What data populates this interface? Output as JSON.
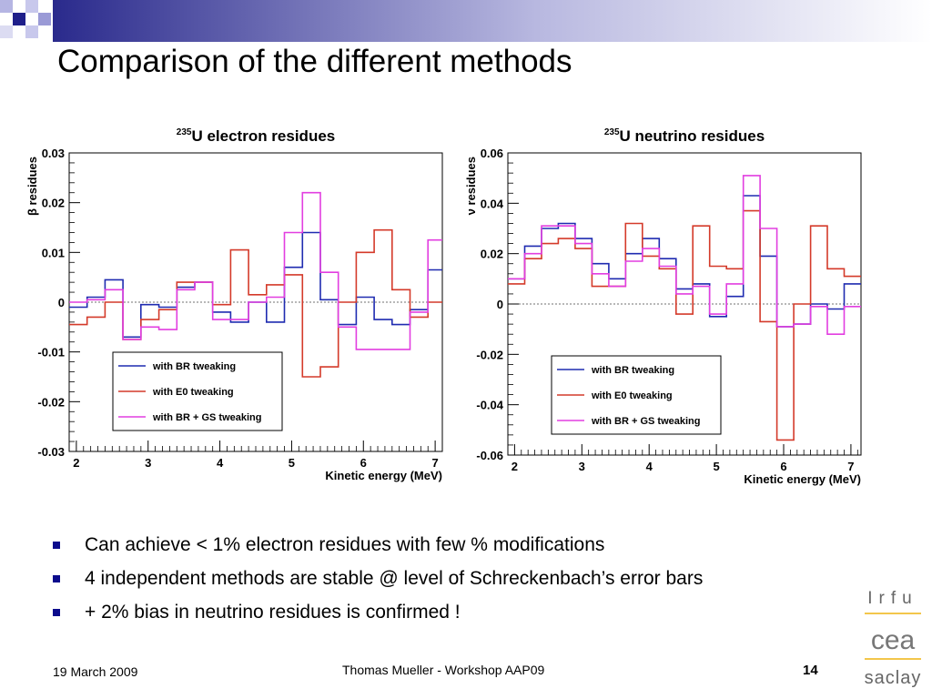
{
  "slide": {
    "title": "Comparison of the different methods",
    "bullets": [
      "Can achieve < 1% electron residues with few % modifications",
      "4 independent methods are stable @ level of Schreckenbach’s error bars",
      "+ 2% bias in neutrino residues is confirmed !"
    ],
    "footer": {
      "date": "19 March 2009",
      "author": "Thomas Mueller - Workshop AAP09",
      "page": "14"
    },
    "logos": {
      "irfu": "Irfu",
      "cea": "cea",
      "saclay": "saclay"
    }
  },
  "colors": {
    "BR": "#1f2bb0",
    "E0": "#d43a2a",
    "BR_GS": "#e23ee0",
    "bullet": "#0b0b8c",
    "logo_line": "#f3c64b"
  },
  "chart_data": [
    {
      "type": "line",
      "title_sup": "235",
      "title": "U electron residues",
      "ylabel": "β residues",
      "xlabel": "Kinetic energy (MeV)",
      "xlim": [
        1.9,
        7.1
      ],
      "ylim": [
        -0.03,
        0.03
      ],
      "xticks": [
        "2",
        "3",
        "4",
        "5",
        "6",
        "7"
      ],
      "yticks": [
        "0.03",
        "0.02",
        "0.01",
        "0",
        "-0.01",
        "-0.02",
        "-0.03"
      ],
      "ytick_values": [
        0.03,
        0.02,
        0.01,
        0,
        -0.01,
        -0.02,
        -0.03
      ],
      "legend_position": "bottom-left",
      "bin_edges": [
        1.9,
        2.15,
        2.4,
        2.65,
        2.9,
        3.15,
        3.4,
        3.65,
        3.9,
        4.15,
        4.4,
        4.65,
        4.9,
        5.15,
        5.4,
        5.65,
        5.9,
        6.15,
        6.4,
        6.65,
        6.9,
        7.15
      ],
      "series": [
        {
          "key": "BR",
          "name": "with BR tweaking",
          "values": [
            -0.001,
            0.001,
            0.0045,
            -0.007,
            -0.0005,
            -0.001,
            0.003,
            0.004,
            -0.002,
            -0.004,
            0.0,
            -0.004,
            0.007,
            0.014,
            0.0005,
            -0.0045,
            0.001,
            -0.0035,
            -0.0045,
            -0.0015,
            0.0065
          ]
        },
        {
          "key": "E0",
          "name": "with E0 tweaking",
          "values": [
            -0.0045,
            -0.003,
            0.0,
            -0.0075,
            -0.0035,
            -0.0015,
            0.004,
            0.004,
            -0.0005,
            0.0105,
            0.0015,
            0.0035,
            0.0055,
            -0.015,
            -0.013,
            0.0,
            0.01,
            0.0145,
            0.0025,
            -0.003,
            0.0
          ]
        },
        {
          "key": "BR_GS",
          "name": "with BR + GS tweaking",
          "values": [
            0.0,
            0.0005,
            0.0025,
            -0.0075,
            -0.005,
            -0.0055,
            0.0025,
            0.004,
            -0.0035,
            -0.0035,
            0.0,
            0.001,
            0.014,
            0.022,
            0.006,
            -0.005,
            -0.0095,
            -0.0095,
            -0.0095,
            -0.002,
            0.0125
          ]
        }
      ]
    },
    {
      "type": "line",
      "title_sup": "235",
      "title": "U neutrino residues",
      "ylabel": "ν residues",
      "xlabel": "Kinetic energy (MeV)",
      "xlim": [
        1.9,
        7.15
      ],
      "ylim": [
        -0.06,
        0.06
      ],
      "xticks": [
        "2",
        "3",
        "4",
        "5",
        "6",
        "7"
      ],
      "yticks": [
        "0.06",
        "0.04",
        "0.02",
        "0",
        "-0.02",
        "-0.04",
        "-0.06"
      ],
      "ytick_values": [
        0.06,
        0.04,
        0.02,
        0,
        -0.02,
        -0.04,
        -0.06
      ],
      "legend_position": "bottom-left",
      "bin_edges": [
        1.9,
        2.15,
        2.4,
        2.65,
        2.9,
        3.15,
        3.4,
        3.65,
        3.9,
        4.15,
        4.4,
        4.65,
        4.9,
        5.15,
        5.4,
        5.65,
        5.9,
        6.15,
        6.4,
        6.65,
        6.9,
        7.15
      ],
      "series": [
        {
          "key": "BR",
          "name": "with BR tweaking",
          "values": [
            0.01,
            0.023,
            0.03,
            0.032,
            0.026,
            0.016,
            0.01,
            0.02,
            0.026,
            0.018,
            0.006,
            0.008,
            -0.005,
            0.003,
            0.043,
            0.019,
            -0.009,
            -0.008,
            0.0,
            -0.002,
            0.008
          ]
        },
        {
          "key": "E0",
          "name": "with E0 tweaking",
          "values": [
            0.008,
            0.018,
            0.024,
            0.026,
            0.022,
            0.007,
            0.007,
            0.032,
            0.019,
            0.014,
            -0.004,
            0.031,
            0.015,
            0.014,
            0.037,
            -0.007,
            -0.054,
            0.0,
            0.031,
            0.014,
            0.011
          ]
        },
        {
          "key": "BR_GS",
          "name": "with BR + GS tweaking",
          "values": [
            0.01,
            0.02,
            0.031,
            0.031,
            0.024,
            0.012,
            0.007,
            0.017,
            0.022,
            0.015,
            0.004,
            0.007,
            -0.004,
            0.008,
            0.051,
            0.03,
            -0.009,
            -0.008,
            -0.001,
            -0.012,
            -0.001
          ]
        }
      ]
    }
  ]
}
